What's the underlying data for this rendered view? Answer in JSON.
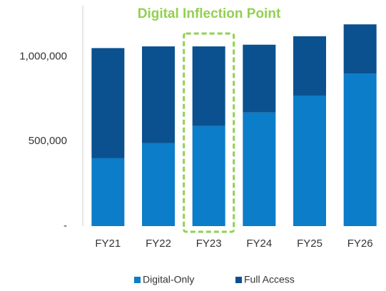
{
  "chart_data": {
    "type": "stacked_bar",
    "categories": [
      "FY21",
      "FY22",
      "FY23",
      "FY24",
      "FY25",
      "FY26"
    ],
    "series": [
      {
        "name": "Digital-Only",
        "color": "#0b7dc9",
        "values": [
          400000,
          490000,
          590000,
          670000,
          770000,
          900000
        ]
      },
      {
        "name": "Full Access",
        "color": "#0b5190",
        "values": [
          650000,
          570000,
          470000,
          400000,
          350000,
          290000
        ]
      }
    ],
    "ylim": [
      0,
      1300000
    ],
    "yticks": [
      {
        "value": 0,
        "label": "-"
      },
      {
        "value": 500000,
        "label": "500,000"
      },
      {
        "value": 1000000,
        "label": "1,000,000"
      }
    ],
    "annotation": {
      "text": "Digital Inflection Point",
      "category": "FY23",
      "color": "#92d050"
    },
    "legend": "bottom"
  }
}
